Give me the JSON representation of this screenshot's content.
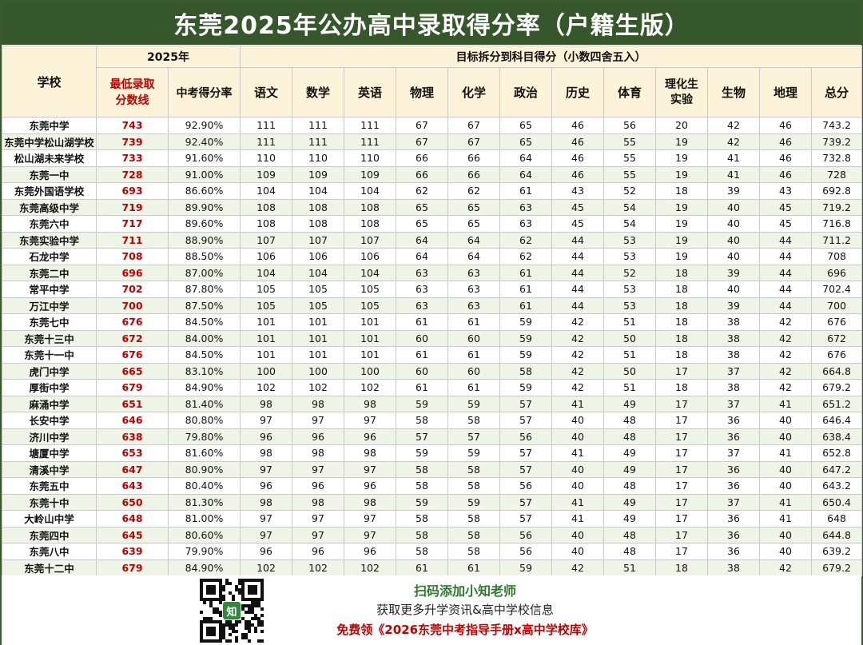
{
  "title": "东莞2025年公办高中录取得分率（户籍生版）",
  "header": {
    "school": "学校",
    "year_group": "2025年",
    "min_score": "最低录取分数线",
    "rate": "中考得分率",
    "target_group": "目标拆分到科目得分（小数四舍五入）",
    "subjects": [
      "语文",
      "数学",
      "英语",
      "物理",
      "化学",
      "政治",
      "历史",
      "体育",
      "理化生实验",
      "生物",
      "地理",
      "总分"
    ]
  },
  "rows": [
    {
      "school": "东莞中学",
      "score": "743",
      "rate": "92.90%",
      "vals": [
        "111",
        "111",
        "111",
        "67",
        "67",
        "65",
        "46",
        "56",
        "20",
        "42",
        "46",
        "743.2"
      ]
    },
    {
      "school": "东莞中学松山湖学校",
      "score": "739",
      "rate": "92.40%",
      "vals": [
        "111",
        "111",
        "111",
        "67",
        "67",
        "65",
        "46",
        "55",
        "19",
        "42",
        "46",
        "739.2"
      ]
    },
    {
      "school": "松山湖未来学校",
      "score": "733",
      "rate": "91.60%",
      "vals": [
        "110",
        "110",
        "110",
        "66",
        "66",
        "64",
        "46",
        "55",
        "19",
        "41",
        "46",
        "732.8"
      ]
    },
    {
      "school": "东莞一中",
      "score": "728",
      "rate": "91.00%",
      "vals": [
        "109",
        "109",
        "109",
        "66",
        "66",
        "64",
        "46",
        "55",
        "19",
        "41",
        "46",
        "728"
      ]
    },
    {
      "school": "东莞外国语学校",
      "score": "693",
      "rate": "86.60%",
      "vals": [
        "104",
        "104",
        "104",
        "62",
        "62",
        "61",
        "43",
        "52",
        "18",
        "39",
        "43",
        "692.8"
      ]
    },
    {
      "school": "东莞高级中学",
      "score": "719",
      "rate": "89.90%",
      "vals": [
        "108",
        "108",
        "108",
        "65",
        "65",
        "63",
        "45",
        "54",
        "19",
        "40",
        "45",
        "719.2"
      ]
    },
    {
      "school": "东莞六中",
      "score": "717",
      "rate": "89.60%",
      "vals": [
        "108",
        "108",
        "108",
        "65",
        "65",
        "63",
        "45",
        "54",
        "19",
        "40",
        "45",
        "716.8"
      ]
    },
    {
      "school": "东莞实验中学",
      "score": "711",
      "rate": "88.90%",
      "vals": [
        "107",
        "107",
        "107",
        "64",
        "64",
        "62",
        "44",
        "53",
        "19",
        "40",
        "44",
        "711.2"
      ]
    },
    {
      "school": "石龙中学",
      "score": "708",
      "rate": "88.50%",
      "vals": [
        "106",
        "106",
        "106",
        "64",
        "64",
        "62",
        "44",
        "53",
        "19",
        "40",
        "44",
        "708"
      ]
    },
    {
      "school": "东莞二中",
      "score": "696",
      "rate": "87.00%",
      "vals": [
        "104",
        "104",
        "104",
        "63",
        "63",
        "61",
        "44",
        "52",
        "18",
        "39",
        "44",
        "696"
      ]
    },
    {
      "school": "常平中学",
      "score": "702",
      "rate": "87.80%",
      "vals": [
        "105",
        "105",
        "105",
        "63",
        "63",
        "61",
        "44",
        "53",
        "18",
        "40",
        "44",
        "702.4"
      ]
    },
    {
      "school": "万江中学",
      "score": "700",
      "rate": "87.50%",
      "vals": [
        "105",
        "105",
        "105",
        "63",
        "63",
        "61",
        "44",
        "53",
        "18",
        "39",
        "44",
        "700"
      ]
    },
    {
      "school": "东莞七中",
      "score": "676",
      "rate": "84.50%",
      "vals": [
        "101",
        "101",
        "101",
        "61",
        "61",
        "59",
        "42",
        "51",
        "18",
        "38",
        "42",
        "676"
      ]
    },
    {
      "school": "东莞十三中",
      "score": "672",
      "rate": "84.00%",
      "vals": [
        "101",
        "101",
        "101",
        "60",
        "60",
        "59",
        "42",
        "50",
        "18",
        "38",
        "42",
        "672"
      ]
    },
    {
      "school": "东莞十一中",
      "score": "676",
      "rate": "84.50%",
      "vals": [
        "101",
        "101",
        "101",
        "61",
        "61",
        "59",
        "42",
        "51",
        "18",
        "38",
        "42",
        "676"
      ]
    },
    {
      "school": "虎门中学",
      "score": "665",
      "rate": "83.10%",
      "vals": [
        "100",
        "100",
        "100",
        "60",
        "60",
        "58",
        "42",
        "50",
        "17",
        "37",
        "42",
        "664.8"
      ]
    },
    {
      "school": "厚街中学",
      "score": "679",
      "rate": "84.90%",
      "vals": [
        "102",
        "102",
        "102",
        "61",
        "61",
        "59",
        "42",
        "51",
        "18",
        "38",
        "42",
        "679.2"
      ]
    },
    {
      "school": "麻涌中学",
      "score": "651",
      "rate": "81.40%",
      "vals": [
        "98",
        "98",
        "98",
        "59",
        "59",
        "57",
        "41",
        "49",
        "17",
        "37",
        "41",
        "651.2"
      ]
    },
    {
      "school": "长安中学",
      "score": "646",
      "rate": "80.80%",
      "vals": [
        "97",
        "97",
        "97",
        "58",
        "58",
        "57",
        "40",
        "48",
        "17",
        "36",
        "40",
        "646.4"
      ]
    },
    {
      "school": "济川中学",
      "score": "638",
      "rate": "79.80%",
      "vals": [
        "96",
        "96",
        "96",
        "57",
        "57",
        "56",
        "40",
        "48",
        "17",
        "36",
        "40",
        "638.4"
      ]
    },
    {
      "school": "塘厦中学",
      "score": "653",
      "rate": "81.60%",
      "vals": [
        "98",
        "98",
        "98",
        "59",
        "59",
        "57",
        "41",
        "49",
        "17",
        "37",
        "41",
        "652.8"
      ]
    },
    {
      "school": "清溪中学",
      "score": "647",
      "rate": "80.90%",
      "vals": [
        "97",
        "97",
        "97",
        "58",
        "58",
        "57",
        "40",
        "49",
        "17",
        "36",
        "40",
        "647.2"
      ]
    },
    {
      "school": "东莞五中",
      "score": "643",
      "rate": "80.40%",
      "vals": [
        "96",
        "96",
        "96",
        "58",
        "58",
        "56",
        "40",
        "48",
        "17",
        "36",
        "40",
        "643.2"
      ]
    },
    {
      "school": "东莞十中",
      "score": "650",
      "rate": "81.30%",
      "vals": [
        "98",
        "98",
        "98",
        "59",
        "59",
        "57",
        "41",
        "49",
        "17",
        "37",
        "41",
        "650.4"
      ]
    },
    {
      "school": "大岭山中学",
      "score": "648",
      "rate": "81.00%",
      "vals": [
        "97",
        "97",
        "97",
        "58",
        "58",
        "57",
        "41",
        "49",
        "17",
        "36",
        "41",
        "648"
      ]
    },
    {
      "school": "东莞四中",
      "score": "645",
      "rate": "80.60%",
      "vals": [
        "97",
        "97",
        "97",
        "58",
        "58",
        "56",
        "40",
        "48",
        "17",
        "36",
        "40",
        "644.8"
      ]
    },
    {
      "school": "东莞八中",
      "score": "639",
      "rate": "79.90%",
      "vals": [
        "96",
        "96",
        "96",
        "58",
        "58",
        "56",
        "40",
        "48",
        "17",
        "36",
        "40",
        "639.2"
      ]
    },
    {
      "school": "东莞十二中",
      "score": "679",
      "rate": "84.90%",
      "vals": [
        "102",
        "102",
        "102",
        "61",
        "61",
        "59",
        "42",
        "51",
        "18",
        "38",
        "42",
        "679.2"
      ]
    }
  ],
  "footer": {
    "line1": "扫码添加小知老师",
    "line2": "获取更多升学资讯&高中学校信息",
    "line3": "免费领《2026东莞中考指导手册x高中学校库》",
    "qr_logo": "知"
  },
  "colors": {
    "title_bg": "#35572b",
    "header_bg": "#fdf3d8",
    "score_red": "#c00000",
    "stripe": "#eef5e6",
    "footer_green": "#2d7a2d"
  },
  "icons": {
    "qr": "qr-code-icon"
  }
}
